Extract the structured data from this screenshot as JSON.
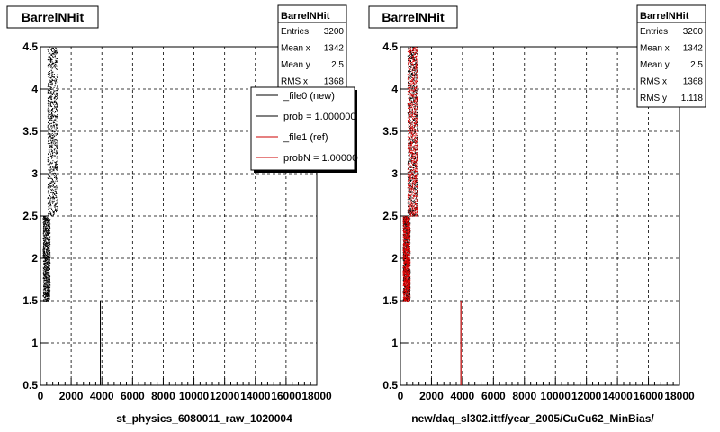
{
  "chart_data": [
    {
      "type": "scatter",
      "title": "BarrelNHit",
      "xlabel": "st_physics_6080011_raw_1020004",
      "xlim": [
        0,
        18000
      ],
      "ylim": [
        0.5,
        4.5
      ],
      "grid": true,
      "x_ticks": [
        "0",
        "2000",
        "4000",
        "6000",
        "8000",
        "10000",
        "12000",
        "14000",
        "16000",
        "18000"
      ],
      "y_ticks": [
        "0.5",
        "1",
        "1.5",
        "2",
        "2.5",
        "3",
        "3.5",
        "4",
        "4.5"
      ],
      "stats": {
        "title": "BarrelNHit",
        "rows": [
          {
            "label": "Entries",
            "value": "3200"
          },
          {
            "label": "Mean x",
            "value": "1342"
          },
          {
            "label": "Mean y",
            "value": "2.5"
          },
          {
            "label": "RMS x",
            "value": "1368"
          }
        ]
      },
      "legend": {
        "placement": "top-right",
        "entries": [
          {
            "label": "_file0 (new)",
            "color": "#000000"
          },
          {
            "label": "prob = 1.000000",
            "color": "#000000"
          },
          {
            "label": "_file1 (ref)",
            "color": "#cc0000"
          },
          {
            "label": "probN = 1.000000",
            "color": "#cc0000"
          }
        ]
      },
      "series": [
        {
          "color": "#000000",
          "bands": [
            {
              "y": [
                2.5,
                4.5
              ],
              "x": [
                450,
                1100
              ]
            },
            {
              "y": [
                1.5,
                2.5
              ],
              "x": [
                150,
                600
              ]
            }
          ],
          "spike": {
            "x": 3900,
            "y": [
              0.5,
              1.5
            ]
          }
        }
      ]
    },
    {
      "type": "scatter",
      "title": "BarrelNHit",
      "xlabel": "new/daq_sl302.ittf/year_2005/CuCu62_MinBias/",
      "xlim": [
        0,
        18000
      ],
      "ylim": [
        0.5,
        4.5
      ],
      "grid": true,
      "x_ticks": [
        "0",
        "2000",
        "4000",
        "6000",
        "8000",
        "10000",
        "12000",
        "14000",
        "16000",
        "18000"
      ],
      "y_ticks": [
        "0.5",
        "1",
        "1.5",
        "2",
        "2.5",
        "3",
        "3.5",
        "4",
        "4.5"
      ],
      "stats": {
        "title": "BarrelNHit",
        "rows": [
          {
            "label": "Entries",
            "value": "3200"
          },
          {
            "label": "Mean x",
            "value": "1342"
          },
          {
            "label": "Mean y",
            "value": "2.5"
          },
          {
            "label": "RMS x",
            "value": "1368"
          },
          {
            "label": "RMS y",
            "value": "1.118"
          }
        ]
      },
      "series": [
        {
          "color": "#000000",
          "bands": [
            {
              "y": [
                2.5,
                4.5
              ],
              "x": [
                450,
                1100
              ]
            },
            {
              "y": [
                1.5,
                2.5
              ],
              "x": [
                150,
                600
              ]
            }
          ],
          "spike": {
            "x": 3900,
            "y": [
              0.5,
              1.5
            ]
          }
        },
        {
          "color": "#dd0000",
          "bands": [
            {
              "y": [
                2.5,
                4.5
              ],
              "x": [
                450,
                1100
              ]
            },
            {
              "y": [
                1.5,
                2.5
              ],
              "x": [
                150,
                600
              ]
            }
          ],
          "spike": {
            "x": 3900,
            "y": [
              0.5,
              1.5
            ]
          }
        }
      ]
    }
  ]
}
